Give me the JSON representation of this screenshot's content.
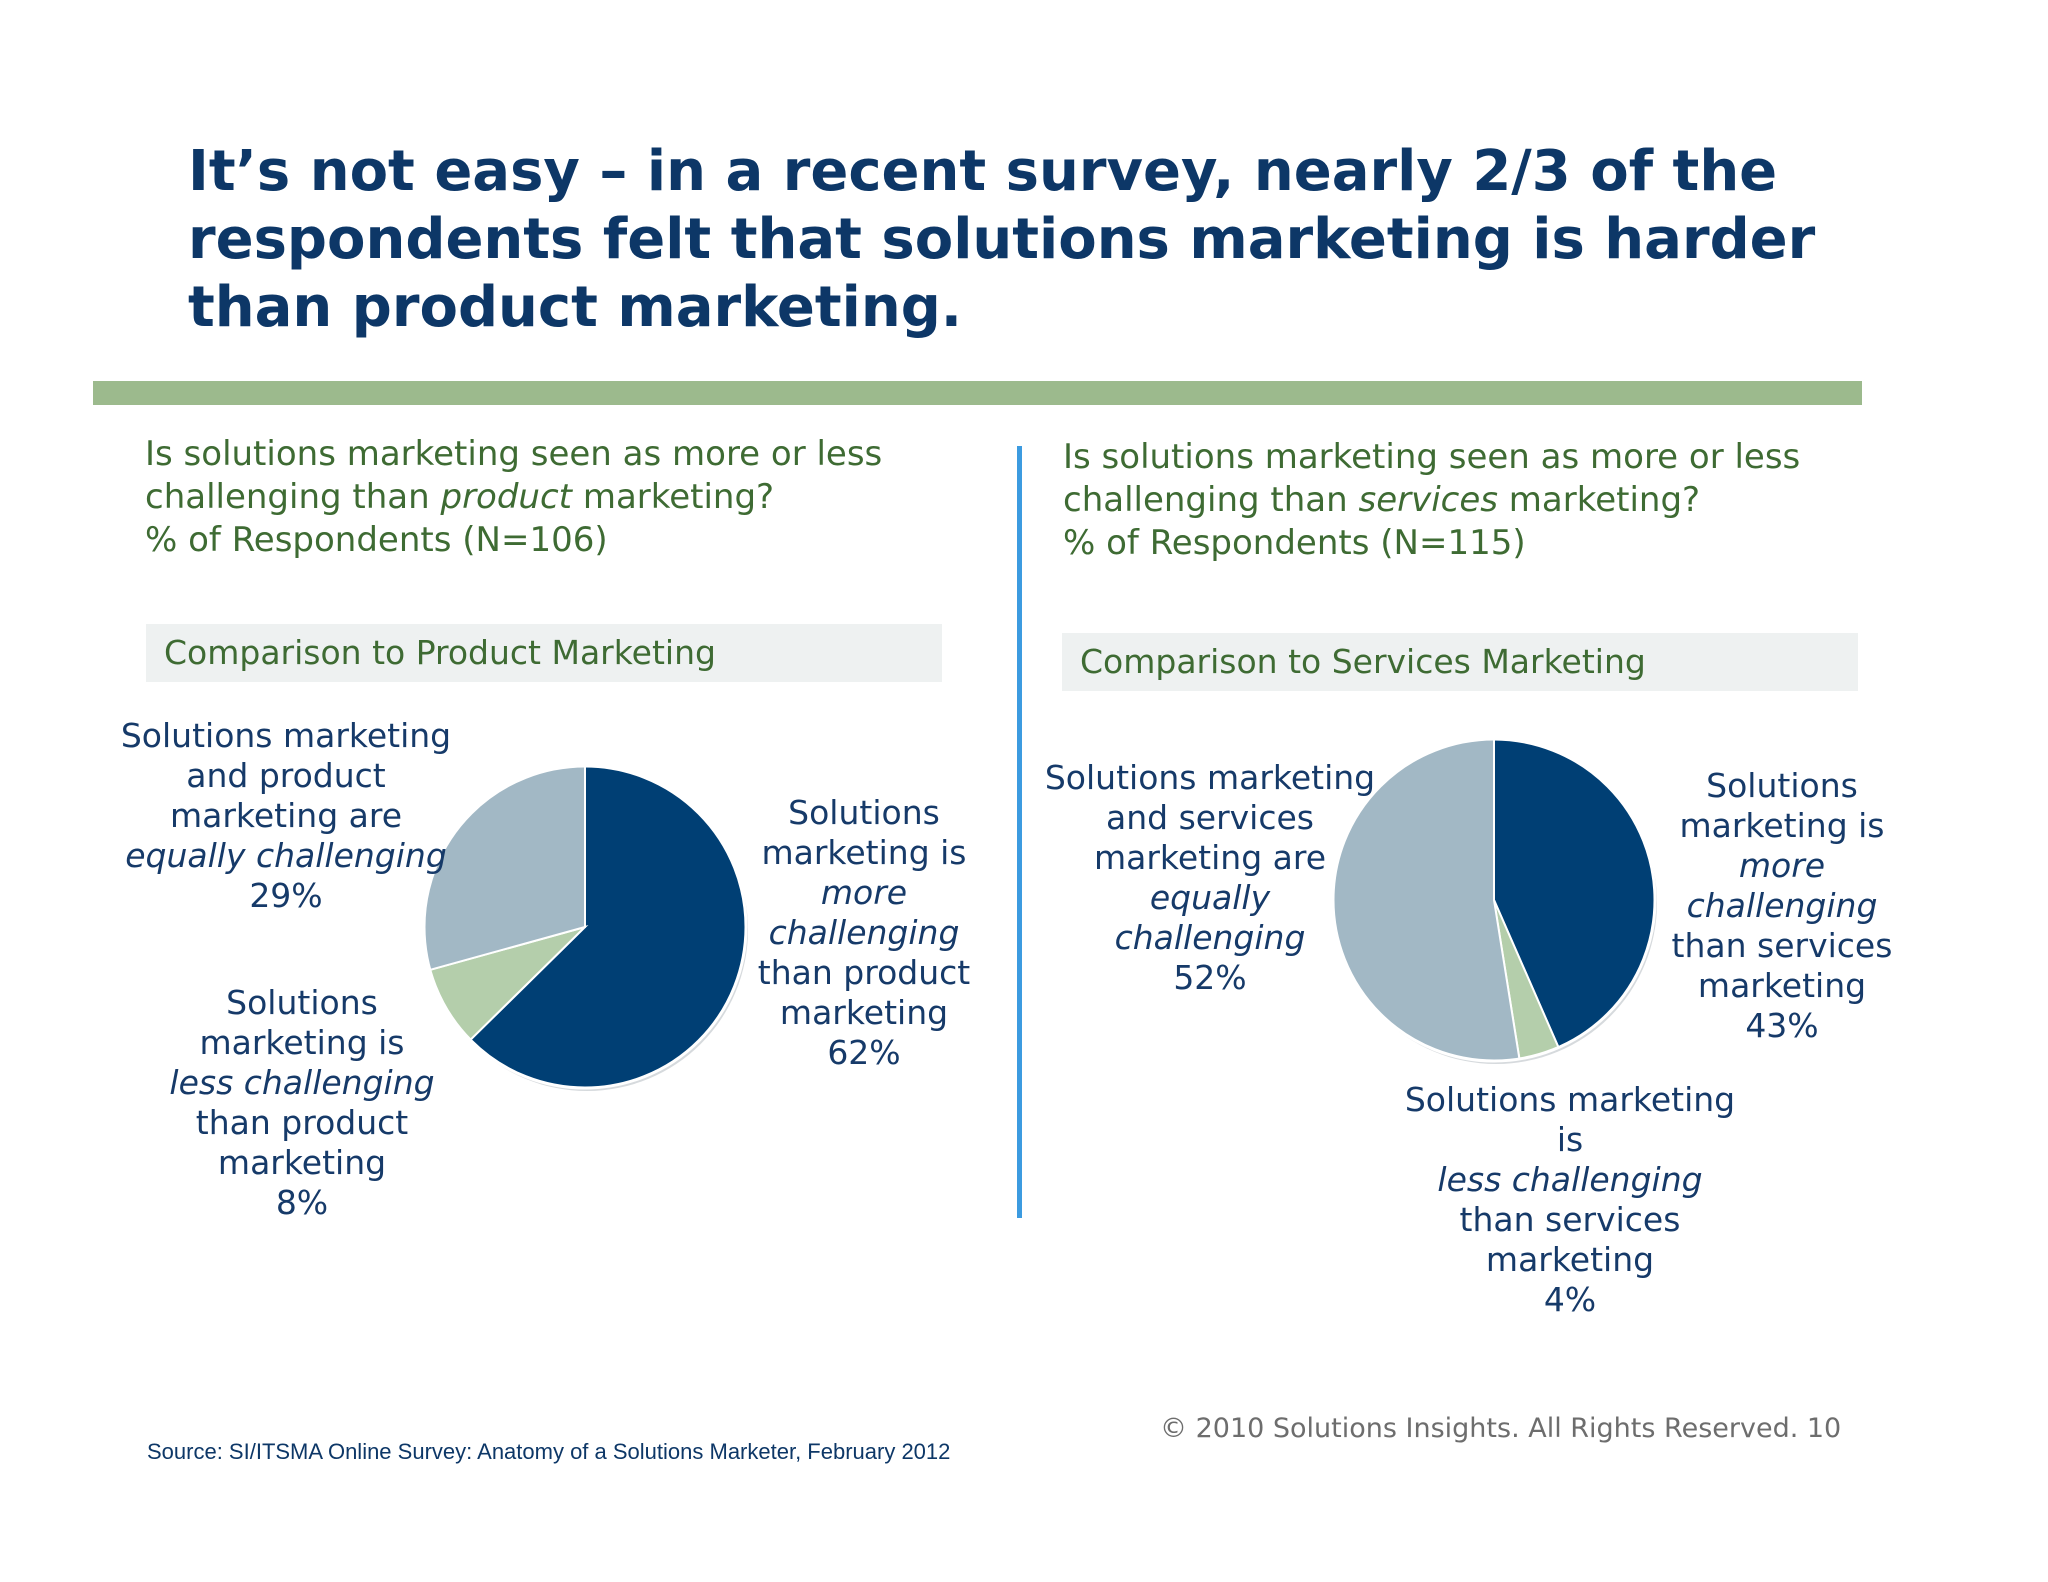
{
  "title": "It’s not easy – in a recent survey, nearly 2/3 of the respondents felt that solutions marketing is harder than product marketing.",
  "colors": {
    "title": "#0d3767",
    "accent_bar": "#9cba8d",
    "divider": "#3c9be0",
    "question_text": "#3e6b33",
    "label_text": "#163a69",
    "slice_more": "#003f74",
    "slice_less": "#b4ceab",
    "slice_equal": "#a2b8c5"
  },
  "left": {
    "question_pre": "Is solutions marketing seen as more or less",
    "question_mid_pre": "challenging than ",
    "question_em": "product",
    "question_mid_post": " marketing?",
    "question_sub": "% of Respondents (N=106)",
    "band": "Comparison to Product Marketing",
    "labels": {
      "equal": [
        "Solutions marketing",
        "and product",
        "marketing are",
        "equally challenging",
        "29%"
      ],
      "less": [
        "Solutions",
        "marketing is",
        "less challenging",
        "than product",
        "marketing",
        "8%"
      ],
      "more": [
        "Solutions",
        "marketing is",
        "more",
        "challenging",
        "than product",
        "marketing",
        "62%"
      ]
    }
  },
  "right": {
    "question_pre": "Is solutions marketing seen as more or less",
    "question_mid_pre": "challenging than ",
    "question_em": "services",
    "question_mid_post": " marketing?",
    "question_sub": "% of Respondents (N=115)",
    "band": "Comparison to Services Marketing",
    "labels": {
      "equal": [
        "Solutions marketing",
        "and services",
        "marketing are",
        "equally",
        "challenging",
        "52%"
      ],
      "less": [
        "Solutions marketing",
        "is",
        "less challenging",
        "than services",
        "marketing",
        "4%"
      ],
      "more": [
        "Solutions",
        "marketing is",
        "more",
        "challenging",
        "than services",
        "marketing",
        "43%"
      ]
    }
  },
  "chart_data": [
    {
      "type": "pie",
      "title": "Comparison to Product Marketing",
      "categories": [
        "more challenging",
        "less challenging",
        "equally challenging"
      ],
      "values": [
        62,
        8,
        29
      ],
      "unit": "%"
    },
    {
      "type": "pie",
      "title": "Comparison to Services Marketing",
      "categories": [
        "more challenging",
        "less challenging",
        "equally challenging"
      ],
      "values": [
        43,
        4,
        52
      ],
      "unit": "%"
    }
  ],
  "footer": {
    "copyright": "© 2010 Solutions Insights. All Rights Reserved.   10",
    "source": "Source: SI/ITSMA Online Survey: Anatomy of a Solutions Marketer, February 2012"
  }
}
